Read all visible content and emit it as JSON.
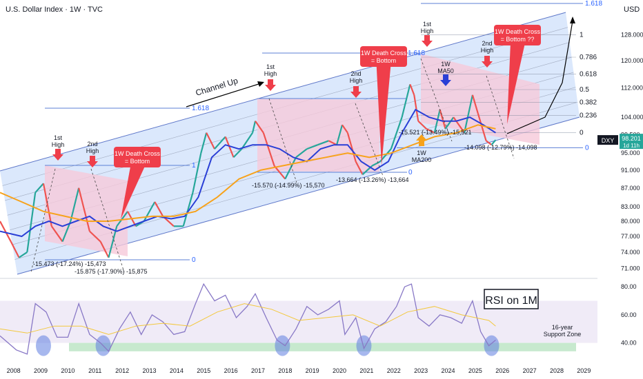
{
  "header": {
    "symbol_line": "U.S. Dollar Index · 1W · TVC",
    "currency": "USD"
  },
  "price_badge": {
    "ticker": "DXY",
    "price": "98.201",
    "countdown": "1d 11h"
  },
  "colors": {
    "ma50": "#2a3fd6",
    "ma200": "#f7a21b",
    "channel_fill": "#cfe0fb",
    "pink_zone": "#f6c9da",
    "red_label": "#ef3e4a",
    "fib_blue": "#2962ff",
    "rsi_line": "#8878c6",
    "rsi_ma": "#f3c83c",
    "support_zone": "#bde5c6",
    "rsi_band": "#e9e2f3"
  },
  "chart_data": [
    {
      "type": "line",
      "title": "",
      "xlabel": "",
      "ylabel": "",
      "x_ticks": [
        "2008",
        "2009",
        "2010",
        "2011",
        "2012",
        "2013",
        "2014",
        "2015",
        "2016",
        "2017",
        "2018",
        "2019",
        "2020",
        "2021",
        "2022",
        "2023",
        "2024",
        "2025",
        "2026",
        "2027",
        "2028",
        "2029"
      ],
      "y_scale": "log",
      "y_ticks": [
        71.0,
        74.0,
        77.0,
        80.0,
        83.0,
        87.0,
        91.0,
        95.0,
        99.5,
        104.0,
        112.0,
        120.0,
        128.0
      ],
      "y_tick_labels": [
        "71.000",
        "74.000",
        "77.000",
        "80.000",
        "83.000",
        "87.000",
        "91.000",
        "95.000",
        "99.500",
        "104.000",
        "112.000",
        "120.000",
        "128.000"
      ],
      "ylim": [
        69.5,
        135
      ],
      "xlim": [
        2007.6,
        2029.6
      ],
      "current_price": 98.2,
      "series": [
        {
          "name": "",
          "kind": "price",
          "x": [
            2007.6,
            2008.0,
            2008.3,
            2008.6,
            2008.9,
            2009.2,
            2009.5,
            2009.9,
            2010.2,
            2010.5,
            2010.9,
            2011.3,
            2011.6,
            2011.9,
            2012.3,
            2012.6,
            2012.9,
            2013.3,
            2013.6,
            2014.0,
            2014.35,
            2014.7,
            2015.0,
            2015.2,
            2015.5,
            2015.9,
            2016.2,
            2016.5,
            2016.9,
            2017.0,
            2017.3,
            2017.7,
            2018.1,
            2018.5,
            2018.9,
            2019.3,
            2019.7,
            2020.0,
            2020.2,
            2020.4,
            2020.7,
            2020.95,
            2021.3,
            2021.6,
            2022.0,
            2022.4,
            2022.7,
            2022.85,
            2023.0,
            2023.3,
            2023.6,
            2023.8,
            2024.0,
            2024.3,
            2024.7,
            2025.0,
            2025.2,
            2025.5,
            2025.7,
            2025.85
          ],
          "y": [
            80,
            76,
            73,
            74,
            86,
            88,
            79,
            76,
            80,
            87,
            78,
            76,
            73,
            79,
            82,
            79,
            80,
            84,
            81,
            79,
            79,
            86,
            95,
            100,
            96,
            99,
            94,
            96,
            100,
            103,
            100,
            92,
            89,
            94,
            96,
            97,
            98,
            97,
            102,
            100,
            93,
            90,
            92,
            93,
            96,
            104,
            113,
            110,
            103,
            101,
            100,
            106,
            101,
            104,
            100,
            110,
            105,
            98,
            97,
            98.2
          ]
        },
        {
          "name": "1W MA50",
          "kind": "ma50",
          "x": [
            2007.6,
            2008.4,
            2008.9,
            2009.4,
            2009.9,
            2010.4,
            2010.9,
            2011.4,
            2011.9,
            2012.4,
            2012.9,
            2013.4,
            2013.9,
            2014.4,
            2014.9,
            2015.4,
            2015.9,
            2016.4,
            2016.9,
            2017.4,
            2017.9,
            2018.4,
            2018.9,
            2019.4,
            2019.9,
            2020.4,
            2020.9,
            2021.4,
            2021.9,
            2022.4,
            2022.9,
            2023.4,
            2023.9,
            2024.4,
            2024.9,
            2025.4,
            2025.85
          ],
          "y": [
            78,
            77,
            79,
            80,
            79,
            80,
            81,
            79,
            78,
            79,
            80,
            81,
            80.5,
            81,
            85,
            94,
            97,
            96,
            97,
            97,
            96,
            94,
            93,
            96,
            97,
            97,
            93,
            91,
            93,
            100,
            106,
            104,
            103,
            103,
            104,
            102,
            100
          ]
        },
        {
          "name": "1W MA200",
          "kind": "ma200",
          "x": [
            2007.6,
            2008.4,
            2009.2,
            2010.0,
            2010.8,
            2011.6,
            2012.4,
            2013.2,
            2014.0,
            2014.8,
            2015.6,
            2016.4,
            2017.2,
            2018.0,
            2018.8,
            2019.6,
            2020.4,
            2021.2,
            2022.0,
            2022.8,
            2023.6,
            2024.4,
            2025.2,
            2025.85
          ],
          "y": [
            86,
            84,
            82,
            81,
            80,
            80,
            80.5,
            81,
            81,
            82,
            85,
            89,
            91,
            92,
            93,
            94,
            95,
            94,
            95,
            97,
            99,
            100,
            102,
            101
          ]
        }
      ],
      "fib_levels_main": [
        {
          "label": "1",
          "value": 128
        },
        {
          "label": "0.786",
          "value": 121
        },
        {
          "label": "0.618",
          "value": 116
        },
        {
          "label": "0.5",
          "value": 111.5
        },
        {
          "label": "0.382",
          "value": 108
        },
        {
          "label": "0.236",
          "value": 104.5
        },
        {
          "label": "0",
          "value": 100
        }
      ],
      "fib_extension": {
        "label": "1.618",
        "value": 136
      },
      "fib_support": {
        "label": "0",
        "value": 96.3
      },
      "annotations": {
        "channel_up": "Channel Up",
        "first_high_lines": [
          "1st",
          "High"
        ],
        "second_high_lines": [
          "2nd",
          "High"
        ],
        "death_cross_1_lines": [
          "1W Death Cross",
          "= Bottom"
        ],
        "death_cross_2_lines": [
          "1W Death Cross",
          "= Bottom"
        ],
        "death_cross_3_lines": [
          "1W Death Cross",
          "= Bottom ??"
        ],
        "ma50_label_lines": [
          "1W",
          "MA50"
        ],
        "ma200_label_lines": [
          "1W",
          "MA200"
        ],
        "fib_1618_a": "1.618",
        "fib_1_a": "1",
        "fib_0_a": "0",
        "fib_1618_b": "1.618",
        "fib_1_b": "1",
        "fib_1618_c": "1.618",
        "fib_0_c": "0",
        "fib_1618_d": "1.618",
        "drop_2008a": "-15.473 (-17.24%) -15,473",
        "drop_2008b": "-15.875 (-17.90%) -15,875",
        "drop_2017": "-15.570 (-14.99%) -15,570",
        "drop_2020": "-13.664 (-13.26%) -13,664",
        "drop_2022": "-15.521 (-13.49%) -15,521",
        "drop_2025": "-14.098 (-12.79%) -14,098"
      }
    },
    {
      "type": "line",
      "title": "RSI on 1M",
      "xlabel": "",
      "ylabel": "",
      "y_ticks": [
        40,
        60,
        80
      ],
      "y_tick_labels": [
        "40.00",
        "60.00",
        "80.00"
      ],
      "ylim": [
        28,
        86
      ],
      "support_zone": [
        34,
        40
      ],
      "band": [
        40,
        70
      ],
      "support_label_lines": [
        "16-year",
        "Support Zone"
      ],
      "series": [
        {
          "name": "",
          "kind": "rsi",
          "x": [
            2007.6,
            2008.2,
            2008.6,
            2008.9,
            2009.3,
            2009.7,
            2010.1,
            2010.5,
            2010.9,
            2011.3,
            2011.6,
            2012.0,
            2012.4,
            2012.8,
            2013.2,
            2013.6,
            2014.0,
            2014.4,
            2014.8,
            2015.1,
            2015.5,
            2015.9,
            2016.3,
            2016.7,
            2017.0,
            2017.4,
            2017.8,
            2018.1,
            2018.5,
            2018.9,
            2019.3,
            2019.7,
            2020.1,
            2020.3,
            2020.7,
            2021.0,
            2021.4,
            2021.8,
            2022.2,
            2022.5,
            2022.75,
            2023.0,
            2023.4,
            2023.8,
            2024.2,
            2024.6,
            2025.0,
            2025.3,
            2025.6,
            2025.85
          ],
          "y": [
            45,
            35,
            32,
            68,
            62,
            44,
            44,
            68,
            46,
            40,
            34,
            50,
            62,
            46,
            60,
            55,
            46,
            48,
            68,
            82,
            70,
            74,
            58,
            66,
            75,
            58,
            42,
            38,
            50,
            66,
            60,
            64,
            70,
            46,
            58,
            36,
            50,
            55,
            66,
            80,
            82,
            58,
            52,
            60,
            58,
            54,
            70,
            48,
            38,
            42
          ]
        },
        {
          "name": "",
          "kind": "rsi_ma",
          "x": [
            2007.6,
            2008.6,
            2009.6,
            2010.6,
            2011.6,
            2012.6,
            2013.6,
            2014.6,
            2015.6,
            2016.6,
            2017.6,
            2018.6,
            2019.6,
            2020.6,
            2021.6,
            2022.6,
            2023.6,
            2024.6,
            2025.6,
            2025.85
          ],
          "y": [
            50,
            47,
            52,
            52,
            46,
            52,
            54,
            52,
            62,
            68,
            64,
            56,
            58,
            60,
            52,
            62,
            66,
            60,
            56,
            52
          ]
        }
      ],
      "support_touches": [
        2009.2,
        2011.4,
        2018.0,
        2021.0,
        2025.7
      ]
    }
  ]
}
